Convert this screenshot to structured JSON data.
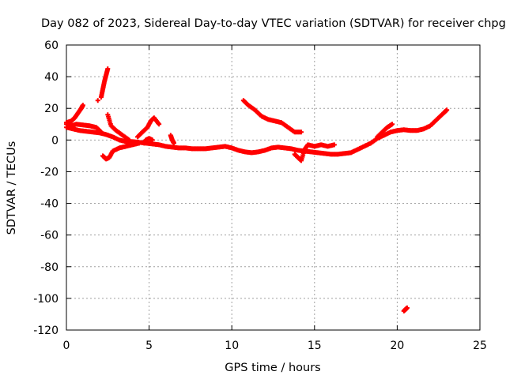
{
  "chart_data": {
    "type": "scatter",
    "title": "Day 082 of 2023, Sidereal Day-to-day VTEC variation (SDTVAR) for receiver chpg",
    "xlabel": "GPS time / hours",
    "ylabel": "SDTVAR / TECUs",
    "xlim": [
      0,
      25
    ],
    "ylim": [
      -120,
      60
    ],
    "xticks": [
      0,
      5,
      10,
      15,
      20,
      25
    ],
    "yticks": [
      -120,
      -100,
      -80,
      -60,
      -40,
      -20,
      0,
      20,
      40,
      60
    ],
    "grid": true,
    "marker": "plus",
    "color": "#ff0000",
    "segments": [
      {
        "name": "main-trace",
        "points": [
          [
            0.0,
            8
          ],
          [
            0.4,
            7
          ],
          [
            0.8,
            6
          ],
          [
            1.2,
            5.5
          ],
          [
            1.6,
            5
          ],
          [
            2.0,
            4.5
          ],
          [
            2.4,
            3.5
          ],
          [
            2.8,
            2
          ],
          [
            3.2,
            0
          ],
          [
            3.6,
            -1
          ],
          [
            4.0,
            -1
          ],
          [
            4.4,
            -1.5
          ],
          [
            4.8,
            -2
          ],
          [
            5.2,
            -2.5
          ],
          [
            5.6,
            -3
          ],
          [
            6.0,
            -4
          ],
          [
            6.4,
            -4.5
          ],
          [
            6.8,
            -5
          ],
          [
            7.2,
            -5
          ],
          [
            7.6,
            -5.5
          ],
          [
            8.0,
            -5.5
          ],
          [
            8.4,
            -5.5
          ],
          [
            8.8,
            -5
          ],
          [
            9.2,
            -4.5
          ],
          [
            9.6,
            -4
          ],
          [
            10.0,
            -5
          ],
          [
            10.4,
            -6.5
          ],
          [
            10.8,
            -7.5
          ],
          [
            11.2,
            -8
          ],
          [
            11.6,
            -7.5
          ],
          [
            12.0,
            -6.5
          ],
          [
            12.4,
            -5
          ],
          [
            12.8,
            -4.5
          ],
          [
            13.2,
            -5
          ],
          [
            13.6,
            -5.5
          ],
          [
            14.0,
            -6.5
          ],
          [
            14.4,
            -7
          ],
          [
            14.8,
            -7.5
          ],
          [
            15.2,
            -8
          ],
          [
            15.6,
            -8.5
          ],
          [
            16.0,
            -9
          ],
          [
            16.4,
            -9
          ],
          [
            16.8,
            -8.5
          ],
          [
            17.2,
            -8
          ],
          [
            17.6,
            -6
          ],
          [
            18.0,
            -4
          ],
          [
            18.4,
            -2
          ],
          [
            18.8,
            1
          ],
          [
            19.2,
            3
          ],
          [
            19.6,
            5
          ],
          [
            20.0,
            6
          ],
          [
            20.4,
            6.5
          ],
          [
            20.8,
            6
          ],
          [
            21.2,
            6
          ],
          [
            21.6,
            7
          ],
          [
            22.0,
            9
          ],
          [
            22.4,
            13
          ],
          [
            22.8,
            17
          ],
          [
            23.0,
            19
          ]
        ]
      },
      {
        "name": "upper-left-band",
        "points": [
          [
            0.0,
            10
          ],
          [
            0.3,
            9
          ],
          [
            0.6,
            10
          ],
          [
            1.0,
            9.5
          ],
          [
            1.4,
            9
          ],
          [
            1.8,
            8
          ],
          [
            2.1,
            5
          ]
        ]
      },
      {
        "name": "early-rise",
        "points": [
          [
            0.0,
            11
          ],
          [
            0.3,
            12
          ],
          [
            0.5,
            14
          ],
          [
            0.7,
            17
          ],
          [
            0.9,
            20
          ],
          [
            1.0,
            22
          ]
        ]
      },
      {
        "name": "spike-2h",
        "points": [
          [
            2.1,
            27
          ],
          [
            2.2,
            32
          ],
          [
            2.3,
            37
          ],
          [
            2.4,
            41
          ],
          [
            2.5,
            45
          ]
        ]
      },
      {
        "name": "isolated-1.9h",
        "points": [
          [
            1.9,
            25
          ]
        ]
      },
      {
        "name": "drop-2h",
        "points": [
          [
            2.2,
            -10
          ],
          [
            2.4,
            -12
          ],
          [
            2.6,
            -11
          ],
          [
            2.8,
            -7
          ],
          [
            3.2,
            -5
          ],
          [
            3.6,
            -4
          ],
          [
            4.0,
            -3
          ],
          [
            4.4,
            -2
          ]
        ]
      },
      {
        "name": "branch-2.5h",
        "points": [
          [
            2.5,
            16
          ],
          [
            2.7,
            9
          ],
          [
            3.0,
            6
          ],
          [
            3.4,
            3
          ],
          [
            3.8,
            0
          ]
        ]
      },
      {
        "name": "bump-5h",
        "points": [
          [
            4.3,
            2
          ],
          [
            4.6,
            5
          ],
          [
            4.9,
            8
          ],
          [
            5.1,
            12
          ],
          [
            5.3,
            14
          ],
          [
            5.6,
            10
          ]
        ]
      },
      {
        "name": "pre-dip-5h",
        "points": [
          [
            4.7,
            -2
          ],
          [
            4.8,
            0
          ],
          [
            5.0,
            1
          ],
          [
            5.2,
            0
          ]
        ]
      },
      {
        "name": "spike-6.3h",
        "points": [
          [
            6.3,
            3
          ],
          [
            6.4,
            0
          ],
          [
            6.5,
            -2
          ]
        ]
      },
      {
        "name": "arc-11h",
        "points": [
          [
            10.7,
            25
          ],
          [
            11.0,
            22
          ],
          [
            11.4,
            19
          ],
          [
            11.8,
            15
          ],
          [
            12.2,
            13
          ],
          [
            12.6,
            12
          ],
          [
            13.0,
            11
          ],
          [
            13.4,
            8
          ],
          [
            13.8,
            5
          ],
          [
            14.2,
            5
          ]
        ]
      },
      {
        "name": "scatter-14h",
        "points": [
          [
            13.8,
            -9
          ],
          [
            14.0,
            -11
          ],
          [
            14.2,
            -13
          ],
          [
            14.4,
            -6
          ],
          [
            14.6,
            -3
          ],
          [
            15.0,
            -4
          ],
          [
            15.4,
            -3
          ],
          [
            15.8,
            -4
          ],
          [
            16.2,
            -3
          ]
        ]
      },
      {
        "name": "branch-19.5h",
        "points": [
          [
            18.8,
            2
          ],
          [
            19.1,
            5
          ],
          [
            19.4,
            8
          ],
          [
            19.7,
            10
          ]
        ]
      },
      {
        "name": "outlier-20.5h",
        "points": [
          [
            20.4,
            -108
          ],
          [
            20.5,
            -107
          ],
          [
            20.6,
            -106
          ]
        ]
      }
    ]
  }
}
